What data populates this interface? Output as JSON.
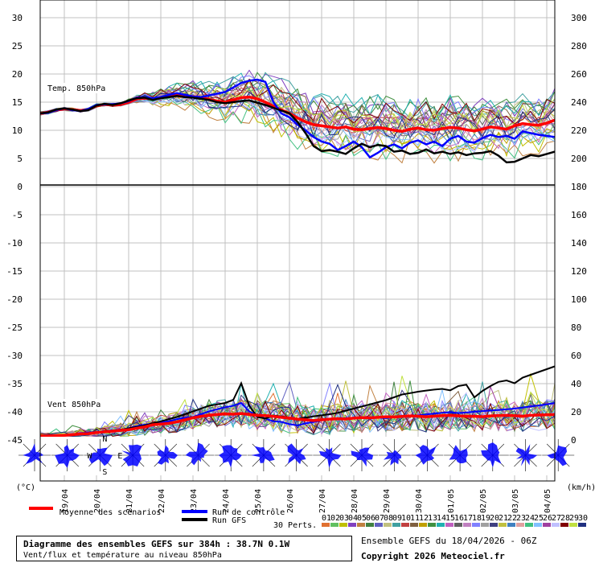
{
  "chart_data": {
    "type": "line",
    "info_title": "Diagramme des ensembles GEFS sur 384h : 38.7N 0.1W",
    "info_subtitle": "Vent/flux et température au niveau 850hPa",
    "ensemble_label": "Ensemble GEFS du 18/04/2026 - 06Z",
    "copyright": "Copyright 2026 Meteociel.fr",
    "left_unit": "(°C)",
    "right_unit": "(km/h)",
    "temp_panel_label": "Temp. 850hPa",
    "wind_panel_label": "Vent 850hPa",
    "left_ticks": [
      "30",
      "25",
      "20",
      "15",
      "10",
      "5",
      "0",
      "-5",
      "-10",
      "-15",
      "-20",
      "-25",
      "-30",
      "-35",
      "-40",
      "-45"
    ],
    "right_ticks": [
      "300",
      "280",
      "260",
      "240",
      "220",
      "200",
      "180",
      "160",
      "140",
      "120",
      "100",
      "80",
      "60",
      "40",
      "20",
      "0"
    ],
    "dates": [
      "19/04",
      "20/04",
      "21/04",
      "22/04",
      "23/04",
      "24/04",
      "25/04",
      "26/04",
      "27/04",
      "28/04",
      "29/04",
      "30/04",
      "01/05",
      "02/05",
      "03/05",
      "04/05"
    ],
    "legend": {
      "mean": "Moyenne des scénarios",
      "control": "Run de contrôle",
      "gfs": "Run GFS",
      "perts": "30 Perts."
    },
    "pert_labels": [
      "01",
      "02",
      "03",
      "04",
      "05",
      "06",
      "07",
      "08",
      "09",
      "10",
      "11",
      "12",
      "13",
      "14",
      "15",
      "16",
      "17",
      "18",
      "19",
      "20",
      "21",
      "22",
      "23",
      "24",
      "25",
      "26",
      "27",
      "28",
      "29",
      "30"
    ],
    "pert_colors": [
      "#e07030",
      "#60c060",
      "#c0c000",
      "#8040c0",
      "#c08040",
      "#408040",
      "#6060c0",
      "#c0c080",
      "#40a0a0",
      "#c04040",
      "#806040",
      "#c0a000",
      "#409040",
      "#20b0b0",
      "#c060c0",
      "#606060",
      "#c080c0",
      "#8080ff",
      "#a0a0a0",
      "#404080",
      "#c0c040",
      "#4080c0",
      "#e0a0a0",
      "#40c080",
      "#80c0ff",
      "#a040a0",
      "#c0c0ff",
      "#800000",
      "#c0e040",
      "#203080"
    ],
    "time_hours": [
      0,
      6,
      12,
      18,
      24,
      30,
      36,
      42,
      48,
      54,
      60,
      66,
      72,
      78,
      84,
      90,
      96,
      102,
      108,
      114,
      120,
      126,
      132,
      138,
      144,
      150,
      156,
      162,
      168,
      174,
      180,
      186,
      192,
      198,
      204,
      210,
      216,
      222,
      228,
      234,
      240,
      246,
      252,
      258,
      264,
      270,
      276,
      282,
      288,
      294,
      300,
      306,
      312,
      318,
      324,
      330,
      336,
      342,
      348,
      354,
      360,
      366,
      372,
      378,
      384
    ],
    "temp_mean": [
      13.0,
      13.2,
      13.6,
      13.8,
      13.7,
      13.5,
      13.7,
      14.4,
      14.6,
      14.5,
      14.6,
      15.0,
      15.6,
      15.7,
      15.6,
      15.8,
      16.0,
      16.2,
      16.1,
      16.0,
      15.8,
      15.5,
      15.2,
      15.0,
      15.4,
      15.8,
      15.9,
      15.6,
      15.0,
      14.3,
      13.6,
      13.0,
      12.2,
      11.5,
      11.0,
      10.8,
      10.6,
      10.4,
      10.6,
      10.2,
      10.1,
      10.3,
      10.5,
      10.3,
      10.0,
      9.8,
      10.2,
      10.4,
      10.1,
      10.0,
      10.3,
      10.5,
      10.4,
      10.1,
      9.9,
      10.2,
      10.6,
      10.4,
      10.2,
      10.8,
      11.2,
      11.0,
      10.9,
      11.3,
      11.8
    ],
    "temp_control": [
      13.0,
      13.1,
      13.6,
      13.9,
      13.6,
      13.4,
      13.8,
      14.5,
      14.6,
      14.6,
      14.8,
      15.2,
      15.8,
      15.9,
      15.7,
      15.9,
      16.3,
      16.6,
      16.3,
      16.0,
      15.9,
      16.2,
      16.5,
      16.8,
      17.6,
      18.4,
      18.8,
      19.0,
      18.6,
      15.0,
      13.0,
      12.3,
      11.0,
      10.0,
      8.8,
      8.0,
      7.6,
      6.5,
      7.2,
      8.0,
      7.0,
      5.2,
      6.0,
      7.0,
      7.5,
      6.8,
      7.8,
      8.2,
      7.5,
      8.0,
      7.2,
      8.5,
      9.0,
      8.0,
      7.8,
      8.6,
      9.2,
      8.8,
      9.0,
      8.5,
      9.8,
      9.5,
      9.2,
      9.0,
      8.8
    ],
    "temp_gfs": [
      13.0,
      13.2,
      13.7,
      13.9,
      13.7,
      13.4,
      13.6,
      14.4,
      14.7,
      14.5,
      14.8,
      15.3,
      15.7,
      15.8,
      15.4,
      15.7,
      15.9,
      16.1,
      15.9,
      15.8,
      15.6,
      15.4,
      15.0,
      14.8,
      15.0,
      15.2,
      15.3,
      14.9,
      14.5,
      14.0,
      13.5,
      13.0,
      11.5,
      9.5,
      7.2,
      6.3,
      6.5,
      6.2,
      5.8,
      6.8,
      7.6,
      7.0,
      7.4,
      7.2,
      6.2,
      6.4,
      5.8,
      6.0,
      6.6,
      5.9,
      6.2,
      5.8,
      6.1,
      5.6,
      5.9,
      6.0,
      6.3,
      5.5,
      4.3,
      4.4,
      5.0,
      5.6,
      5.4,
      5.8,
      6.2
    ],
    "wind_mean": [
      0.5,
      0.6,
      0.8,
      1.0,
      1.4,
      2.0,
      2.2,
      3.0,
      3.5,
      4.0,
      4.5,
      5.0,
      6.0,
      7.0,
      8.5,
      9.0,
      9.5,
      10.5,
      12.0,
      13.5,
      14.5,
      15.2,
      15.8,
      16.2,
      16.0,
      16.5,
      15.8,
      15.2,
      15.0,
      14.5,
      13.8,
      13.2,
      12.5,
      12.0,
      11.5,
      12.0,
      12.5,
      12.8,
      12.6,
      13.2,
      13.6,
      13.4,
      13.8,
      14.2,
      14.0,
      14.4,
      14.8,
      14.6,
      14.2,
      14.6,
      15.0,
      15.2,
      14.8,
      14.5,
      14.6,
      14.2,
      14.8,
      15.0,
      15.2,
      14.9,
      14.6,
      15.2,
      15.4,
      15.6,
      15.8
    ],
    "wind_control": [
      0.5,
      0.4,
      0.8,
      1.2,
      1.6,
      2.6,
      3.0,
      3.4,
      4.0,
      4.5,
      5.0,
      6.0,
      7.5,
      8.5,
      9.5,
      10.0,
      11.0,
      12.5,
      13.5,
      14.0,
      16.0,
      18.0,
      19.5,
      21.0,
      22.0,
      24.0,
      18.0,
      15.0,
      13.0,
      11.0,
      10.5,
      9.0,
      8.0,
      9.5,
      10.5,
      11.5,
      12.5,
      12.8,
      13.2,
      13.6,
      13.8,
      14.0,
      13.5,
      13.2,
      14.0,
      14.5,
      14.8,
      15.2,
      15.8,
      16.5,
      17.0,
      17.5,
      16.8,
      17.2,
      17.8,
      18.2,
      18.6,
      19.0,
      19.5,
      20.0,
      20.8,
      21.5,
      22.2,
      23.0,
      24.0
    ],
    "wind_gfs": [
      0.6,
      0.8,
      1.0,
      1.2,
      1.8,
      2.2,
      2.6,
      3.2,
      3.8,
      4.2,
      5.0,
      6.0,
      7.0,
      8.0,
      9.5,
      11.0,
      12.5,
      14.0,
      16.0,
      18.0,
      20.0,
      22.0,
      23.0,
      24.0,
      26.0,
      38.0,
      22.0,
      14.0,
      13.0,
      15.0,
      14.5,
      13.5,
      12.8,
      13.5,
      14.5,
      15.2,
      16.0,
      17.0,
      18.5,
      20.0,
      21.5,
      23.0,
      24.5,
      26.0,
      28.0,
      30.0,
      31.0,
      32.0,
      32.8,
      33.5,
      34.0,
      33.0,
      36.0,
      37.0,
      28.0,
      32.5,
      36.0,
      39.0,
      40.0,
      38.0,
      42.0,
      44.0,
      46.0,
      48.0,
      50.0
    ]
  }
}
